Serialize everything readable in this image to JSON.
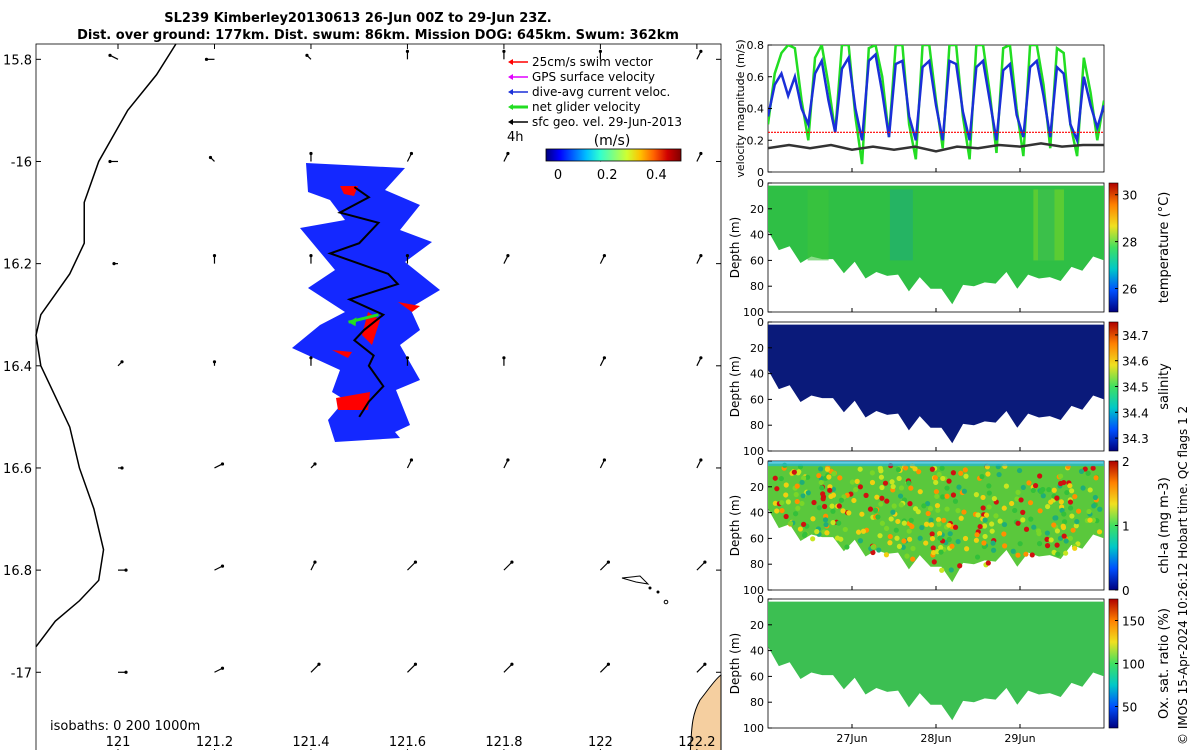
{
  "colors": {
    "map_vector": "#000000",
    "glider_track_band": "#1428ff",
    "swim_vector": "#ff0000",
    "gps_velocity": "#e100ff",
    "dive_avg": "#1a2fd8",
    "net_velocity": "#22dd22",
    "sfc_geo": "#000000",
    "land": "#f5cfa0",
    "coast": "#000000"
  },
  "header": {
    "line1": "SL239 Kimberley20130613 26-Jun 00Z to 29-Jun 23Z.",
    "line2": "Dist. over ground: 177km. Dist. swum: 86km. Mission DOG: 645km. Swum: 362km"
  },
  "legend": {
    "items": [
      {
        "label": "25cm/s swim vector",
        "color": "#ff0000"
      },
      {
        "label": "GPS surface velocity",
        "color": "#e100ff"
      },
      {
        "label": "dive-avg current veloc.",
        "color": "#1a2fd8"
      },
      {
        "label": "net glider velocity",
        "color": "#22dd22"
      },
      {
        "label": "sfc geo. vel. 29-Jun-2013",
        "color": "#000000"
      }
    ],
    "time_label": "4h",
    "colorbar_title": "(m/s)",
    "colorbar_ticks": [
      "0",
      "0.2",
      "0.4"
    ]
  },
  "isobaths_note": "isobaths: 0   200  1000m",
  "side_text": "© IMOS 15-Apr-2024 10:26:12 Hobart time. QC flags 1  2",
  "chart_data": [
    {
      "type": "scatter",
      "name": "map",
      "xlim": [
        120.83,
        122.25
      ],
      "ylim": [
        -17.16,
        -15.77
      ],
      "x_ticks": [
        121,
        121.2,
        121.4,
        121.6,
        121.8,
        122,
        122.2
      ],
      "x_tick_labels": [
        "121",
        "121.2",
        "121.4",
        "121.6",
        "121.8",
        "122",
        "122.2"
      ],
      "y_ticks": [
        -15.8,
        -16,
        -16.2,
        -16.4,
        -16.6,
        -16.8,
        -17
      ],
      "y_tick_labels": [
        "15.8",
        "-16",
        "16.2",
        "16.4",
        "16.6",
        "16.8",
        "-17"
      ],
      "grid_lon": [
        121,
        121.2,
        121.4,
        121.6,
        121.8,
        122,
        122.2
      ],
      "grid_lat": [
        -15.8,
        -16,
        -16.2,
        -16.4,
        -16.6,
        -16.8,
        -17
      ],
      "vectors_u": [
        [
          -0.02,
          -0.02,
          -0.01,
          0.0,
          0.0,
          0.0,
          0.01
        ],
        [
          -0.02,
          -0.01,
          0.0,
          0.01,
          0.01,
          0.01,
          0.01
        ],
        [
          -0.01,
          0.0,
          0.0,
          0.0,
          0.01,
          0.01,
          0.01
        ],
        [
          0.01,
          0.0,
          0.0,
          0.0,
          0.0,
          0.01,
          0.01
        ],
        [
          0.01,
          0.02,
          0.01,
          0.01,
          0.01,
          0.01,
          0.01
        ],
        [
          0.02,
          0.02,
          0.01,
          0.02,
          0.02,
          0.02,
          0.02
        ],
        [
          0.02,
          0.02,
          0.02,
          0.02,
          0.02,
          0.02,
          0.02
        ]
      ],
      "vectors_v": [
        [
          0.01,
          0.0,
          0.01,
          0.02,
          0.02,
          0.02,
          0.02
        ],
        [
          0.0,
          0.01,
          0.02,
          0.02,
          0.02,
          0.02,
          0.02
        ],
        [
          0.0,
          0.02,
          0.02,
          0.02,
          0.02,
          0.02,
          0.02
        ],
        [
          0.01,
          0.01,
          0.02,
          0.02,
          0.02,
          0.02,
          0.02
        ],
        [
          0.0,
          0.01,
          0.01,
          0.02,
          0.02,
          0.02,
          0.02
        ],
        [
          0.0,
          0.01,
          0.02,
          0.02,
          0.02,
          0.02,
          0.02
        ],
        [
          0.0,
          0.01,
          0.02,
          0.02,
          0.02,
          0.02,
          0.02
        ]
      ],
      "coastline": [
        [
          121.12,
          -15.77
        ],
        [
          121.08,
          -15.83
        ],
        [
          121.02,
          -15.9
        ],
        [
          120.96,
          -16.0
        ],
        [
          120.93,
          -16.08
        ],
        [
          120.93,
          -16.16
        ],
        [
          120.9,
          -16.22
        ],
        [
          120.87,
          -16.26
        ],
        [
          120.84,
          -16.3
        ],
        [
          120.83,
          -16.34
        ],
        [
          120.84,
          -16.4
        ],
        [
          120.87,
          -16.46
        ],
        [
          120.9,
          -16.52
        ],
        [
          120.92,
          -16.6
        ],
        [
          120.95,
          -16.68
        ],
        [
          120.97,
          -16.76
        ],
        [
          120.96,
          -16.82
        ],
        [
          120.92,
          -16.86
        ],
        [
          120.87,
          -16.9
        ],
        [
          120.83,
          -16.95
        ]
      ],
      "glider_track": [
        [
          121.49,
          -16.05
        ],
        [
          121.52,
          -16.07
        ],
        [
          121.46,
          -16.1
        ],
        [
          121.54,
          -16.12
        ],
        [
          121.5,
          -16.16
        ],
        [
          121.44,
          -16.18
        ],
        [
          121.56,
          -16.22
        ],
        [
          121.58,
          -16.24
        ],
        [
          121.48,
          -16.27
        ],
        [
          121.55,
          -16.3
        ],
        [
          121.51,
          -16.33
        ],
        [
          121.49,
          -16.35
        ],
        [
          121.53,
          -16.38
        ],
        [
          121.52,
          -16.4
        ],
        [
          121.55,
          -16.44
        ],
        [
          121.52,
          -16.47
        ],
        [
          121.5,
          -16.5
        ]
      ],
      "net_velocity": {
        "lon": 121.54,
        "lat": -16.3,
        "u": -0.12,
        "v": -0.03
      }
    },
    {
      "type": "line",
      "name": "velocity",
      "ylabel": "velocity magnitude (m/s)",
      "xlim": [
        0,
        4
      ],
      "ylim": [
        0,
        0.8
      ],
      "y_ticks": [
        0,
        0.2,
        0.4,
        0.6,
        0.8
      ],
      "x_ticks": [
        1,
        2,
        3
      ],
      "x_tick_labels": [
        "27Jun",
        "28Jun",
        "29Jun"
      ],
      "series": [
        {
          "key": "net",
          "color": "#22dd22",
          "width": 2.5,
          "x": [
            0,
            0.08,
            0.16,
            0.24,
            0.32,
            0.4,
            0.48,
            0.56,
            0.64,
            0.72,
            0.8,
            0.88,
            0.96,
            1.04,
            1.12,
            1.2,
            1.28,
            1.36,
            1.44,
            1.52,
            1.6,
            1.68,
            1.76,
            1.84,
            1.92,
            2.0,
            2.08,
            2.16,
            2.24,
            2.32,
            2.4,
            2.48,
            2.56,
            2.64,
            2.72,
            2.8,
            2.88,
            2.96,
            3.04,
            3.12,
            3.2,
            3.28,
            3.36,
            3.44,
            3.52,
            3.6,
            3.68,
            3.76,
            3.84,
            3.92,
            4.0
          ],
          "y": [
            0.3,
            0.62,
            0.75,
            0.8,
            0.78,
            0.45,
            0.2,
            0.72,
            0.8,
            0.55,
            0.25,
            0.8,
            0.8,
            0.35,
            0.05,
            0.78,
            0.8,
            0.6,
            0.22,
            0.8,
            0.8,
            0.3,
            0.08,
            0.8,
            0.8,
            0.45,
            0.15,
            0.8,
            0.8,
            0.35,
            0.08,
            0.8,
            0.8,
            0.5,
            0.12,
            0.78,
            0.8,
            0.4,
            0.1,
            0.8,
            0.8,
            0.55,
            0.15,
            0.78,
            0.75,
            0.3,
            0.1,
            0.72,
            0.5,
            0.2,
            0.45
          ]
        },
        {
          "key": "dive",
          "color": "#1a2fd8",
          "width": 2.5,
          "x": [
            0,
            0.08,
            0.16,
            0.24,
            0.32,
            0.4,
            0.48,
            0.56,
            0.64,
            0.72,
            0.8,
            0.88,
            0.96,
            1.04,
            1.12,
            1.2,
            1.28,
            1.36,
            1.44,
            1.52,
            1.6,
            1.68,
            1.76,
            1.84,
            1.92,
            2.0,
            2.08,
            2.16,
            2.24,
            2.32,
            2.4,
            2.48,
            2.56,
            2.64,
            2.72,
            2.8,
            2.88,
            2.96,
            3.04,
            3.12,
            3.2,
            3.28,
            3.36,
            3.44,
            3.52,
            3.6,
            3.68,
            3.76,
            3.84,
            3.92,
            4.0
          ],
          "y": [
            0.35,
            0.55,
            0.62,
            0.48,
            0.6,
            0.4,
            0.3,
            0.62,
            0.7,
            0.45,
            0.25,
            0.65,
            0.72,
            0.4,
            0.2,
            0.7,
            0.74,
            0.5,
            0.22,
            0.68,
            0.7,
            0.35,
            0.2,
            0.66,
            0.7,
            0.42,
            0.2,
            0.7,
            0.68,
            0.38,
            0.2,
            0.66,
            0.7,
            0.45,
            0.2,
            0.64,
            0.68,
            0.36,
            0.22,
            0.66,
            0.7,
            0.48,
            0.22,
            0.66,
            0.62,
            0.3,
            0.2,
            0.6,
            0.42,
            0.28,
            0.42
          ]
        },
        {
          "key": "swim",
          "color": "#ff0000",
          "width": 1.2,
          "dashed": true,
          "x": [
            0,
            4
          ],
          "y": [
            0.25,
            0.25
          ]
        },
        {
          "key": "geo",
          "color": "#333333",
          "width": 2.5,
          "x": [
            0,
            0.25,
            0.5,
            0.75,
            1.0,
            1.25,
            1.5,
            1.75,
            2.0,
            2.25,
            2.5,
            2.75,
            3.0,
            3.25,
            3.5,
            3.75,
            4.0
          ],
          "y": [
            0.15,
            0.17,
            0.15,
            0.17,
            0.14,
            0.16,
            0.14,
            0.16,
            0.13,
            0.16,
            0.15,
            0.17,
            0.16,
            0.18,
            0.16,
            0.17,
            0.17
          ]
        }
      ]
    },
    {
      "type": "heatmap",
      "name": "temperature",
      "ylabel": "Depth (m)",
      "cbar_label": "temperature (°C)",
      "ylim": [
        0,
        100
      ],
      "y_ticks": [
        0,
        20,
        40,
        60,
        80,
        100
      ],
      "clim": [
        25,
        30.5
      ],
      "cbar_ticks": [
        26,
        28,
        30
      ],
      "fill_color": "#2fbf45",
      "bottom_depth": [
        40,
        48,
        52,
        58,
        60,
        55,
        62,
        66,
        64,
        70,
        72,
        68,
        74,
        80,
        76,
        78,
        85,
        90,
        82,
        76,
        80,
        74,
        72,
        78,
        74,
        70,
        76,
        72,
        68,
        64,
        60,
        56
      ],
      "patch_colors": [
        "#7ad628",
        "#3dc43a",
        "#26b85a",
        "#1fae78"
      ]
    },
    {
      "type": "heatmap",
      "name": "salinity",
      "ylabel": "Depth (m)",
      "cbar_label": "salinity",
      "ylim": [
        0,
        100
      ],
      "y_ticks": [
        0,
        20,
        40,
        60,
        80,
        100
      ],
      "clim": [
        34.25,
        34.75
      ],
      "cbar_ticks": [
        34.3,
        34.4,
        34.5,
        34.6,
        34.7
      ],
      "fill_color": "#0a1a7a",
      "bottom_depth": [
        40,
        48,
        52,
        58,
        60,
        55,
        62,
        66,
        64,
        70,
        72,
        68,
        74,
        80,
        76,
        78,
        85,
        90,
        82,
        76,
        80,
        74,
        72,
        78,
        74,
        70,
        76,
        72,
        68,
        64,
        60,
        56
      ]
    },
    {
      "type": "heatmap",
      "name": "chl",
      "ylabel": "Depth (m)",
      "cbar_label": "chl-a (mg m-3)",
      "ylim": [
        0,
        100
      ],
      "y_ticks": [
        0,
        20,
        40,
        60,
        80,
        100
      ],
      "clim": [
        0,
        2
      ],
      "cbar_ticks": [
        0,
        1,
        2
      ],
      "fill_color": "#5ac83c",
      "bottom_depth": [
        40,
        48,
        52,
        58,
        60,
        55,
        62,
        66,
        64,
        70,
        72,
        68,
        74,
        80,
        76,
        78,
        85,
        90,
        82,
        76,
        80,
        74,
        72,
        78,
        74,
        70,
        76,
        72,
        68,
        64,
        60,
        56
      ]
    },
    {
      "type": "heatmap",
      "name": "oxygen",
      "ylabel": "Depth (m)",
      "cbar_label": "Ox. sat. ratio (%)",
      "ylim": [
        0,
        100
      ],
      "y_ticks": [
        0,
        20,
        40,
        60,
        80,
        100
      ],
      "clim": [
        25,
        175
      ],
      "cbar_ticks": [
        50,
        100,
        150
      ],
      "fill_color": "#3cbf52",
      "bottom_depth": [
        40,
        48,
        52,
        58,
        60,
        55,
        62,
        66,
        64,
        70,
        72,
        68,
        74,
        80,
        76,
        78,
        85,
        90,
        82,
        76,
        80,
        74,
        72,
        78,
        74,
        70,
        76,
        72,
        68,
        64,
        60,
        56
      ]
    }
  ]
}
